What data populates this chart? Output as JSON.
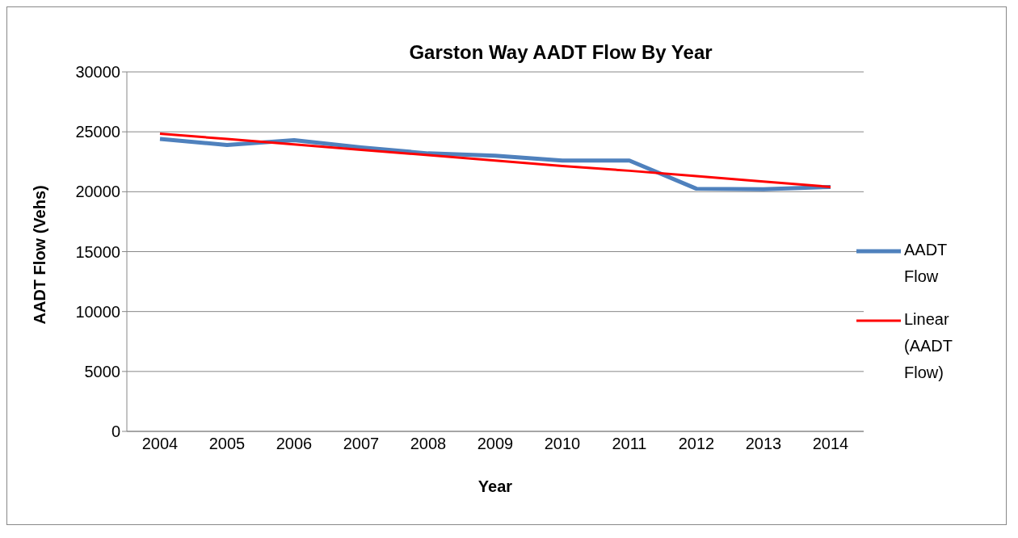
{
  "chart_data": {
    "type": "line",
    "title": "Garston Way AADT Flow By Year",
    "xlabel": "Year",
    "ylabel": "AADT Flow (Vehs)",
    "categories": [
      "2004",
      "2005",
      "2006",
      "2007",
      "2008",
      "2009",
      "2010",
      "2011",
      "2012",
      "2013",
      "2014"
    ],
    "series": [
      {
        "name": "AADT Flow",
        "color": "#4f81bd",
        "values": [
          24400,
          23900,
          24300,
          23700,
          23200,
          23000,
          22600,
          22600,
          20250,
          20200,
          20400
        ]
      },
      {
        "name": "Linear (AADT Flow)",
        "type": "line",
        "color": "#ff0000",
        "values": [
          24850,
          24400,
          23950,
          23500,
          23050,
          22600,
          22150,
          21750,
          21300,
          20850,
          20400
        ]
      }
    ],
    "ylim": [
      0,
      30000
    ],
    "yticks": [
      0,
      5000,
      10000,
      15000,
      20000,
      25000,
      30000
    ],
    "grid": "y",
    "legend": "right",
    "marker": "none"
  }
}
